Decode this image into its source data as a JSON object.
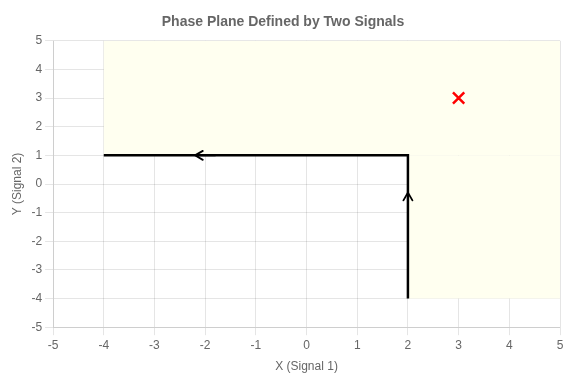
{
  "chart_data": {
    "type": "line",
    "title": "Phase Plane Defined by Two Signals",
    "xlabel": "X (Signal 1)",
    "ylabel": "Y (Signal 2)",
    "xlim": [
      -5,
      5
    ],
    "ylim": [
      -5,
      5
    ],
    "xticks": [
      -5,
      -4,
      -3,
      -2,
      -1,
      0,
      1,
      2,
      3,
      4,
      5
    ],
    "yticks": [
      -5,
      -4,
      -3,
      -2,
      -1,
      0,
      1,
      2,
      3,
      4,
      5
    ],
    "grid": true,
    "series": [
      {
        "type": "line",
        "color": "#000000",
        "line_style": "solid",
        "x": [
          2,
          2,
          -4
        ],
        "values": [
          -4,
          1,
          1
        ]
      },
      {
        "type": "scatter",
        "color": "#ff0000",
        "marker": "x",
        "x": [
          3
        ],
        "values": [
          3
        ]
      }
    ],
    "regions": [
      {
        "x": [
          -4,
          5
        ],
        "y": [
          1,
          5
        ],
        "color": "#fffff0"
      },
      {
        "x": [
          2,
          5
        ],
        "y": [
          -4,
          1
        ],
        "color": "#fffff0"
      }
    ],
    "arrows": [
      {
        "x": 2,
        "y": -0.7,
        "dx": 0,
        "dy": 0.4,
        "color": "#000000"
      },
      {
        "x": -1.8,
        "y": 1,
        "dx": -0.4,
        "dy": 0,
        "color": "#000000"
      }
    ]
  }
}
